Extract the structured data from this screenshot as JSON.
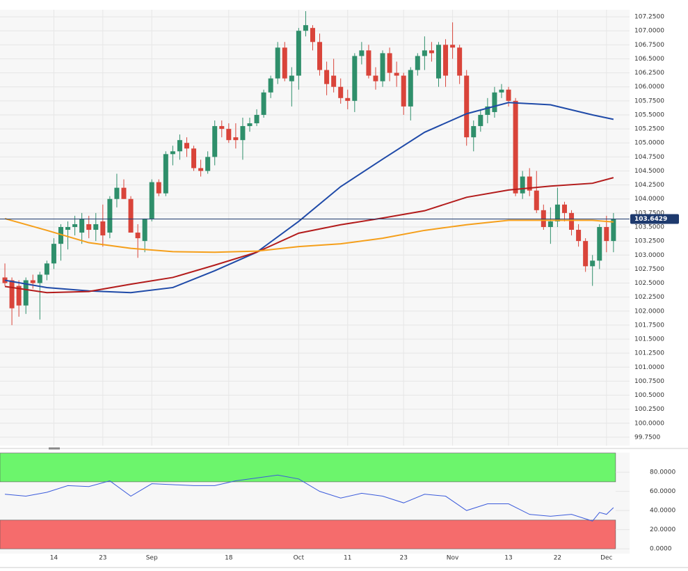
{
  "chart_data": [
    {
      "type": "candlestick",
      "categories": [
        null,
        null,
        null,
        null,
        null,
        null,
        null,
        "14",
        null,
        null,
        null,
        null,
        null,
        null,
        "23",
        null,
        null,
        null,
        null,
        null,
        null,
        "Sep",
        null,
        null,
        null,
        null,
        null,
        null,
        null,
        null,
        null,
        null,
        "18",
        null,
        null,
        null,
        null,
        null,
        null,
        null,
        null,
        null,
        "Oct",
        null,
        null,
        null,
        null,
        null,
        null,
        "11",
        null,
        null,
        null,
        null,
        null,
        null,
        null,
        "23",
        null,
        null,
        null,
        null,
        null,
        null,
        "Nov",
        null,
        null,
        null,
        null,
        null,
        null,
        null,
        "13",
        null,
        null,
        null,
        null,
        null,
        null,
        "22",
        null,
        null,
        null,
        null,
        null,
        null,
        "Dec",
        null
      ],
      "open": [
        102.6,
        102.55,
        102.45,
        102.1,
        102.55,
        102.5,
        102.65,
        102.85,
        103.2,
        103.45,
        103.5,
        103.4,
        103.55,
        103.45,
        103.6,
        103.4,
        104.0,
        104.2,
        104.0,
        103.4,
        103.25,
        103.65,
        104.3,
        104.1,
        104.8,
        104.85,
        105.0,
        104.9,
        104.55,
        104.5,
        104.75,
        105.3,
        105.25,
        105.1,
        105.05,
        105.3,
        105.35,
        105.5,
        105.9,
        106.15,
        106.7,
        106.1,
        106.2,
        107.0,
        107.05,
        106.8,
        106.3,
        106.2,
        106.0,
        105.8,
        105.75,
        106.55,
        106.65,
        106.2,
        106.1,
        106.6,
        106.25,
        106.2,
        105.65,
        106.3,
        106.55,
        106.65,
        106.15,
        106.75,
        106.75,
        106.7,
        106.2,
        105.1,
        105.3,
        105.5,
        105.55,
        105.9,
        105.95,
        105.75,
        104.1,
        104.4,
        104.15,
        103.8,
        103.5,
        103.6,
        103.9,
        103.75,
        103.45,
        103.25,
        102.8,
        102.9,
        103.5,
        103.25
      ],
      "high": [
        102.85,
        102.6,
        102.55,
        102.6,
        102.65,
        102.7,
        102.9,
        103.3,
        103.55,
        103.6,
        103.7,
        103.75,
        103.7,
        103.75,
        103.9,
        104.05,
        104.45,
        104.35,
        104.05,
        103.55,
        103.65,
        104.35,
        104.35,
        104.85,
        104.95,
        105.15,
        105.1,
        104.95,
        104.7,
        104.85,
        105.4,
        105.4,
        105.35,
        105.35,
        105.45,
        105.45,
        105.6,
        105.95,
        106.2,
        106.8,
        106.8,
        106.35,
        107.05,
        107.35,
        107.1,
        106.95,
        106.45,
        106.5,
        106.15,
        105.95,
        106.6,
        106.8,
        106.75,
        106.35,
        106.65,
        106.7,
        106.45,
        106.25,
        106.35,
        106.6,
        106.9,
        106.8,
        106.8,
        106.85,
        107.15,
        106.75,
        106.3,
        105.4,
        105.6,
        105.8,
        106.0,
        106.05,
        106.0,
        105.8,
        104.5,
        104.55,
        104.5,
        103.9,
        103.85,
        104.2,
        103.95,
        103.8,
        103.55,
        103.3,
        103.0,
        103.55,
        103.7,
        103.75
      ],
      "low": [
        102.45,
        101.75,
        101.9,
        101.95,
        102.4,
        101.85,
        102.55,
        102.75,
        102.9,
        103.1,
        103.35,
        103.2,
        103.3,
        103.25,
        103.15,
        103.3,
        103.85,
        104.0,
        103.4,
        102.95,
        103.05,
        103.6,
        104.05,
        104.05,
        104.6,
        104.7,
        104.75,
        104.5,
        104.4,
        104.45,
        104.6,
        105.1,
        105.0,
        104.9,
        104.7,
        105.2,
        105.3,
        105.45,
        105.8,
        106.05,
        106.1,
        105.65,
        105.95,
        106.9,
        106.65,
        106.2,
        105.85,
        105.9,
        105.7,
        105.6,
        105.55,
        106.4,
        106.15,
        105.95,
        106.0,
        106.1,
        106.0,
        105.5,
        105.4,
        106.2,
        106.3,
        106.45,
        106.0,
        106.0,
        106.5,
        106.05,
        104.95,
        104.85,
        105.2,
        105.35,
        105.45,
        105.8,
        105.65,
        104.05,
        104.0,
        104.05,
        103.75,
        103.45,
        103.2,
        103.5,
        103.6,
        103.35,
        103.15,
        102.7,
        102.45,
        102.75,
        103.05,
        103.05
      ],
      "close": [
        102.5,
        102.05,
        102.1,
        102.55,
        102.5,
        102.65,
        102.85,
        103.2,
        103.5,
        103.5,
        103.55,
        103.65,
        103.45,
        103.55,
        103.35,
        104.0,
        104.2,
        104.0,
        103.4,
        103.3,
        103.65,
        104.3,
        104.1,
        104.8,
        104.85,
        105.05,
        104.9,
        104.55,
        104.5,
        104.75,
        105.3,
        105.25,
        105.05,
        105.05,
        105.3,
        105.35,
        105.5,
        105.9,
        106.15,
        106.7,
        106.15,
        106.2,
        107.0,
        107.1,
        106.8,
        106.3,
        106.05,
        106.0,
        105.8,
        105.75,
        106.55,
        106.65,
        106.2,
        106.1,
        106.6,
        106.25,
        106.2,
        105.65,
        106.3,
        106.55,
        106.65,
        106.6,
        106.75,
        106.2,
        106.7,
        106.2,
        105.1,
        105.3,
        105.5,
        105.65,
        105.9,
        105.95,
        105.75,
        104.1,
        104.4,
        104.15,
        103.8,
        103.5,
        103.6,
        103.9,
        103.75,
        103.45,
        103.25,
        102.8,
        102.9,
        103.5,
        103.25,
        103.6429
      ],
      "up_color": "#2f8f6b",
      "down_color": "#d9443a",
      "lines": [
        {
          "color": "#1f4aa8",
          "x": [
            0,
            6,
            12,
            18,
            24,
            30,
            36,
            42,
            48,
            54,
            60,
            66,
            72,
            78,
            84,
            87
          ],
          "values": [
            102.55,
            102.42,
            102.36,
            102.33,
            102.42,
            102.72,
            103.05,
            103.6,
            104.22,
            104.71,
            105.19,
            105.52,
            105.72,
            105.68,
            105.5,
            105.42
          ]
        },
        {
          "color": "#b31b1b",
          "x": [
            0,
            6,
            12,
            18,
            24,
            30,
            36,
            42,
            48,
            54,
            60,
            66,
            72,
            78,
            84,
            87
          ],
          "values": [
            102.44,
            102.33,
            102.35,
            102.48,
            102.6,
            102.82,
            103.05,
            103.39,
            103.54,
            103.66,
            103.79,
            104.03,
            104.16,
            104.23,
            104.28,
            104.38
          ]
        },
        {
          "color": "#f59f1a",
          "x": [
            0,
            6,
            12,
            18,
            24,
            30,
            36,
            42,
            48,
            54,
            60,
            66,
            72,
            78,
            84,
            87
          ],
          "values": [
            103.65,
            103.44,
            103.22,
            103.12,
            103.06,
            103.05,
            103.07,
            103.15,
            103.2,
            103.3,
            103.44,
            103.54,
            103.62,
            103.62,
            103.62,
            103.59
          ]
        }
      ],
      "last_value": 103.6429,
      "last_color": "#1e3a6e",
      "ylim": [
        99.6,
        107.375
      ],
      "yticks": [
        {
          "value": 99.75,
          "label": "99.7500"
        },
        {
          "value": 100,
          "label": "100.0000"
        },
        {
          "value": 100.25,
          "label": "100.2500"
        },
        {
          "value": 100.5,
          "label": "100.5000"
        },
        {
          "value": 100.75,
          "label": "100.7500"
        },
        {
          "value": 101,
          "label": "101.0000"
        },
        {
          "value": 101.25,
          "label": "101.2500"
        },
        {
          "value": 101.5,
          "label": "101.5000"
        },
        {
          "value": 101.75,
          "label": "101.7500"
        },
        {
          "value": 102,
          "label": "102.0000"
        },
        {
          "value": 102.25,
          "label": "102.2500"
        },
        {
          "value": 102.5,
          "label": "102.5000"
        },
        {
          "value": 102.75,
          "label": "102.7500"
        },
        {
          "value": 103,
          "label": "103.0000"
        },
        {
          "value": 103.25,
          "label": "103.2500"
        },
        {
          "value": 103.5,
          "label": "103.5000"
        },
        {
          "value": 103.75,
          "label": "103.7500"
        },
        {
          "value": 104,
          "label": "104.0000"
        },
        {
          "value": 104.25,
          "label": "104.2500"
        },
        {
          "value": 104.5,
          "label": "104.5000"
        },
        {
          "value": 104.75,
          "label": "104.7500"
        },
        {
          "value": 105,
          "label": "105.0000"
        },
        {
          "value": 105.25,
          "label": "105.2500"
        },
        {
          "value": 105.5,
          "label": "105.5000"
        },
        {
          "value": 105.75,
          "label": "105.7500"
        },
        {
          "value": 106,
          "label": "106.0000"
        },
        {
          "value": 106.25,
          "label": "106.2500"
        },
        {
          "value": 106.5,
          "label": "106.5000"
        },
        {
          "value": 106.75,
          "label": "106.7500"
        },
        {
          "value": 107,
          "label": "107.0000"
        },
        {
          "value": 107.25,
          "label": "107.2500"
        }
      ],
      "grid": true
    },
    {
      "type": "line",
      "x": [
        0,
        3,
        6,
        9,
        12,
        15,
        18,
        21,
        24,
        27,
        30,
        33,
        36,
        39,
        42,
        45,
        48,
        51,
        54,
        57,
        60,
        63,
        66,
        69,
        72,
        75,
        78,
        81,
        84,
        85,
        86,
        87
      ],
      "values": [
        57,
        55,
        59,
        66,
        65,
        71,
        55,
        68,
        67,
        66,
        66,
        71,
        74,
        77,
        73,
        60,
        53,
        58,
        55,
        48,
        57,
        55,
        40,
        47,
        47,
        36,
        34,
        36,
        29,
        38,
        36,
        43
      ],
      "color": "#3b5bdb",
      "bands": [
        {
          "range": [
            70,
            100
          ],
          "color": "#6cf56c"
        },
        {
          "range": [
            0,
            30
          ],
          "color": "#f56c6c"
        }
      ],
      "xlim": [
        -0.7,
        89.3
      ],
      "ylim": [
        -5,
        100.5
      ],
      "yticks": [
        {
          "value": 0,
          "label": "0.0000"
        },
        {
          "value": 20,
          "label": "20.0000"
        },
        {
          "value": 40,
          "label": "40.0000"
        },
        {
          "value": 60,
          "label": "60.0000"
        },
        {
          "value": 80,
          "label": "80.0000"
        }
      ],
      "grid": true
    }
  ]
}
